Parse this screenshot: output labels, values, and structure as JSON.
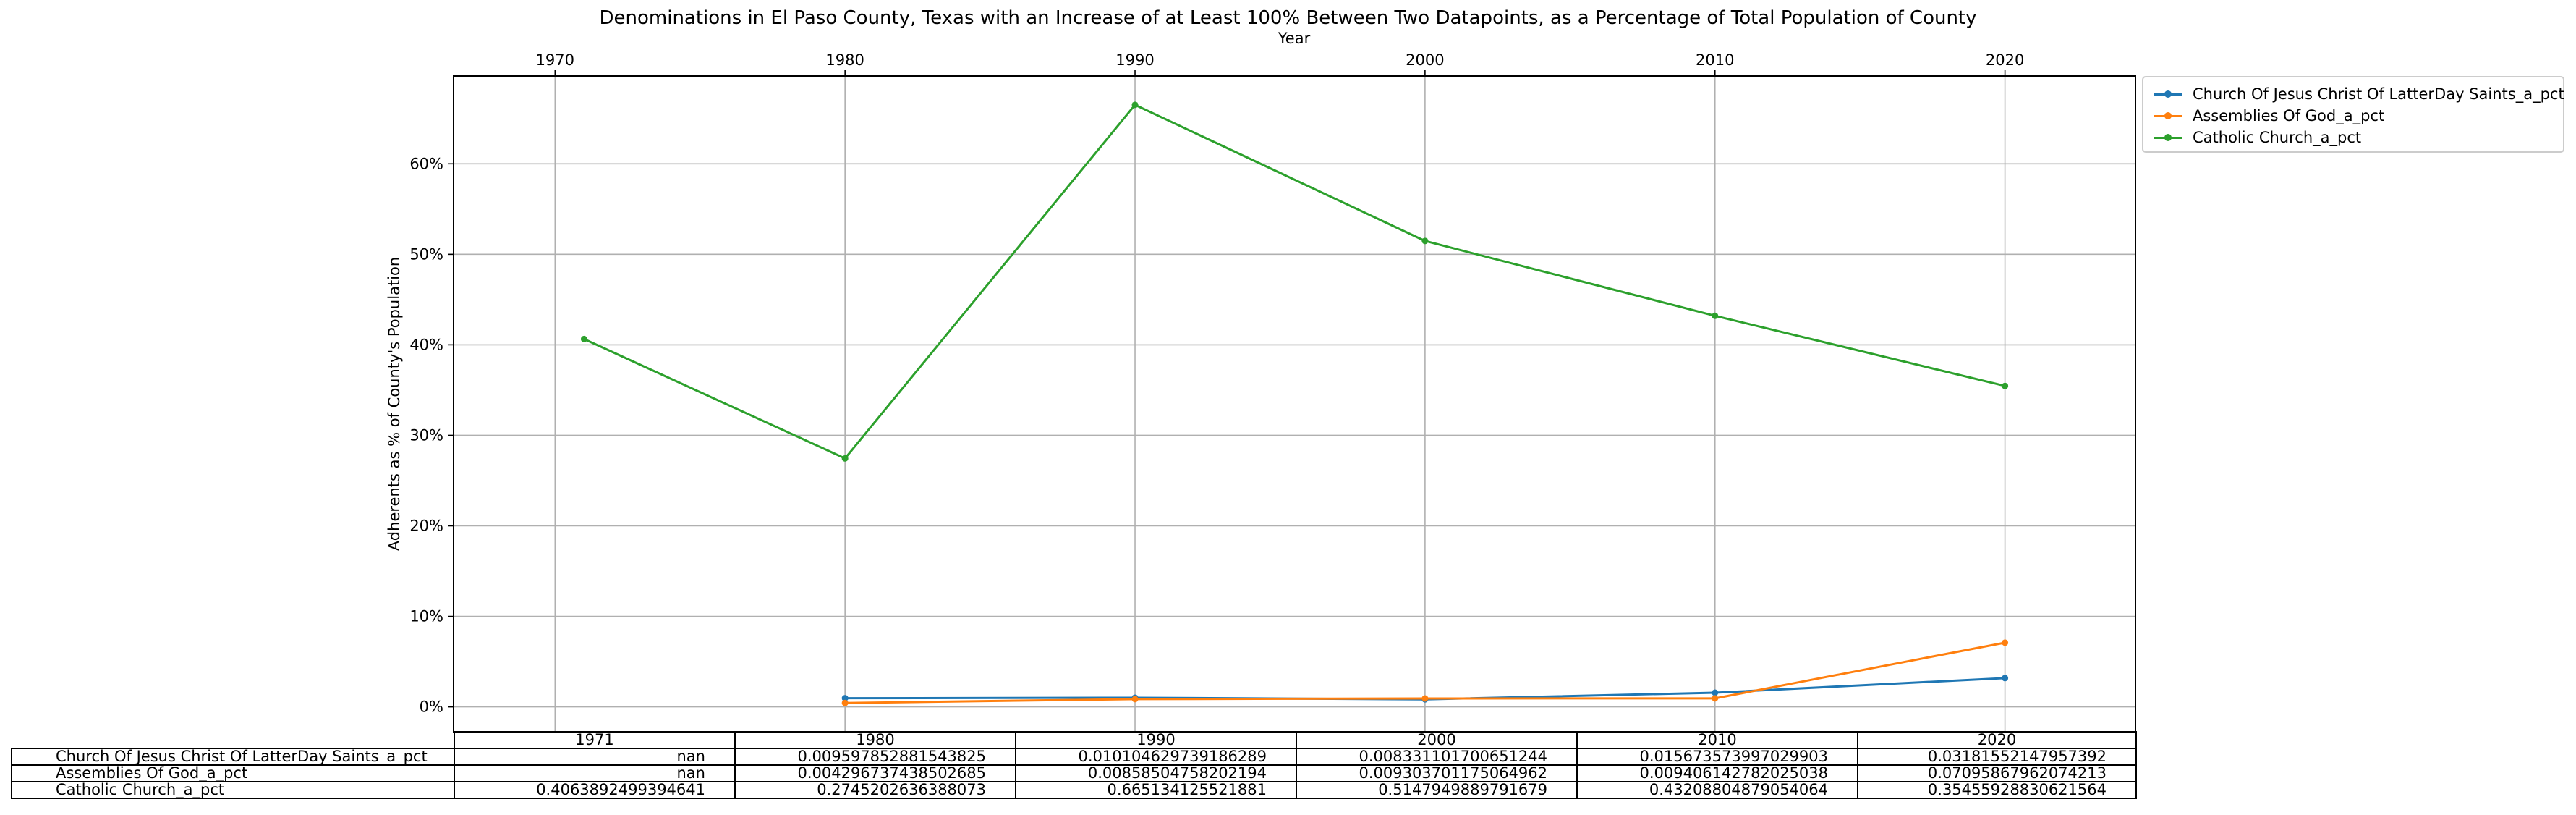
{
  "chart_data": {
    "type": "line",
    "title": "Denominations in El Paso County, Texas with an Increase of at Least 100% Between Two Datapoints, as a Percentage of Total Population of County",
    "xlabel": "Year",
    "ylabel": "Adherents as % of County's Population",
    "x_ticks": [
      "1970",
      "1980",
      "1990",
      "2000",
      "2010",
      "2020"
    ],
    "y_ticks": [
      "0%",
      "10%",
      "20%",
      "30%",
      "40%",
      "50%",
      "60%"
    ],
    "xlim": [
      1966.5,
      2024.5
    ],
    "ylim": [
      -0.0283,
      0.697
    ],
    "grid": true,
    "x_axis_position": "top",
    "legend_position": "outside-top-right",
    "series": [
      {
        "name": "Church Of Jesus Christ Of LatterDay Saints_a_pct",
        "color": "#1f77b4",
        "x": [
          1980,
          1990,
          2000,
          2010,
          2020
        ],
        "values": [
          0.0095978528815,
          0.0101046297392,
          0.0083311017007,
          0.015673573997,
          0.0318155214796
        ]
      },
      {
        "name": "Assemblies Of God_a_pct",
        "color": "#ff7f0e",
        "x": [
          1980,
          1990,
          2000,
          2010,
          2020
        ],
        "values": [
          0.004296737385,
          0.0085850475822,
          0.0093037011751,
          0.009406142782,
          0.0709586796207
        ]
      },
      {
        "name": "Catholic Church_a_pct",
        "color": "#2ca02c",
        "x": [
          1971,
          1980,
          1990,
          2000,
          2010,
          2020
        ],
        "values": [
          0.4063892499395,
          0.2745202636388,
          0.6651341255219,
          0.5147949889792,
          0.4320880487905,
          0.3545592883062
        ]
      }
    ]
  },
  "table": {
    "headers": [
      "1971",
      "1980",
      "1990",
      "2000",
      "2010",
      "2020"
    ],
    "rows": [
      {
        "label": "Church Of Jesus Christ Of LatterDay Saints_a_pct",
        "cells": [
          "nan",
          "0.009597852881543825",
          "0.010104629739186289",
          "0.008331101700651244",
          "0.015673573997029903",
          "0.03181552147957392"
        ]
      },
      {
        "label": "Assemblies Of God_a_pct",
        "cells": [
          "nan",
          "0.004296737438502685",
          "0.00858504758202194",
          "0.009303701175064962",
          "0.009406142782025038",
          "0.07095867962074213"
        ]
      },
      {
        "label": "Catholic Church_a_pct",
        "cells": [
          "0.4063892499394641",
          "0.2745202636388073",
          "0.665134125521881",
          "0.5147949889791679",
          "0.43208804879054064",
          "0.35455928830621564"
        ]
      }
    ]
  }
}
